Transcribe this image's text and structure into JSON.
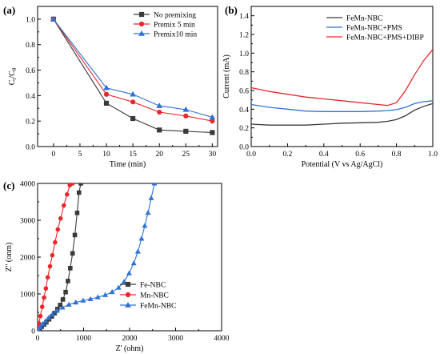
{
  "chart_data": [
    {
      "type": "line",
      "panel": "(a)",
      "xlabel": "Time (min)",
      "ylabel_main": "C",
      "ylabel_sub1": "t",
      "ylabel_mid": "/C",
      "ylabel_sub2": "0",
      "xlim": [
        -3,
        31
      ],
      "ylim": [
        0,
        1.1
      ],
      "xticks": [
        0,
        5,
        10,
        15,
        20,
        25,
        30
      ],
      "yticks": [
        0.0,
        0.2,
        0.4,
        0.6,
        0.8,
        1.0
      ],
      "xtick_labels": [
        "0",
        "5",
        "10",
        "15",
        "20",
        "25",
        "30"
      ],
      "ytick_labels": [
        "0.0",
        "0.2",
        "0.4",
        "0.6",
        "0.8",
        "1.0"
      ],
      "legend_position": "top-right",
      "series": [
        {
          "name": "No premixing",
          "color": "#3a3a3a",
          "marker": "square",
          "x": [
            0,
            10,
            15,
            20,
            25,
            30
          ],
          "y": [
            1.0,
            0.34,
            0.22,
            0.13,
            0.12,
            0.11
          ]
        },
        {
          "name": "Premix 5 min",
          "color": "#e8282b",
          "marker": "circle",
          "x": [
            0,
            10,
            15,
            20,
            25,
            30
          ],
          "y": [
            1.0,
            0.41,
            0.35,
            0.27,
            0.24,
            0.2
          ]
        },
        {
          "name": "Premix10 min",
          "color": "#2f72d6",
          "marker": "triangle",
          "x": [
            0,
            10,
            15,
            20,
            25,
            30
          ],
          "y": [
            1.0,
            0.46,
            0.41,
            0.32,
            0.29,
            0.23
          ]
        }
      ]
    },
    {
      "type": "line",
      "panel": "(b)",
      "xlabel": "Potential (V vs Ag/AgCl)",
      "ylabel": "Current (mA)",
      "xlim": [
        0,
        1
      ],
      "ylim": [
        0,
        1.5
      ],
      "xticks": [
        0,
        0.2,
        0.4,
        0.6,
        0.8,
        1.0
      ],
      "yticks": [
        0.0,
        0.2,
        0.4,
        0.6,
        0.8,
        1.0,
        1.2,
        1.4
      ],
      "xtick_labels": [
        "0.0",
        "0.2",
        "0.4",
        "0.6",
        "0.8",
        "1.0"
      ],
      "ytick_labels": [
        "0.0",
        "0.2",
        "0.4",
        "0.6",
        "0.8",
        "1.0",
        "1.2",
        "1.4"
      ],
      "legend_position": "top-right",
      "series": [
        {
          "name": "FeMn-NBC",
          "color": "#3a3a3a",
          "x": [
            0,
            0.1,
            0.2,
            0.3,
            0.4,
            0.5,
            0.6,
            0.7,
            0.75,
            0.8,
            0.85,
            0.9,
            0.95,
            1.0
          ],
          "y": [
            0.24,
            0.23,
            0.23,
            0.23,
            0.24,
            0.25,
            0.255,
            0.26,
            0.27,
            0.29,
            0.33,
            0.39,
            0.43,
            0.46
          ]
        },
        {
          "name": "FeMn-NBC+PMS",
          "color": "#2f72d6",
          "x": [
            0,
            0.1,
            0.2,
            0.3,
            0.4,
            0.5,
            0.6,
            0.7,
            0.75,
            0.8,
            0.85,
            0.9,
            0.95,
            1.0
          ],
          "y": [
            0.45,
            0.42,
            0.4,
            0.38,
            0.375,
            0.375,
            0.375,
            0.38,
            0.385,
            0.395,
            0.42,
            0.46,
            0.48,
            0.49
          ]
        },
        {
          "name": "FeMn-NBC+PMS+DIBP",
          "color": "#e8282b",
          "x": [
            0,
            0.1,
            0.2,
            0.3,
            0.35,
            0.4,
            0.5,
            0.6,
            0.7,
            0.75,
            0.8,
            0.85,
            0.9,
            0.95,
            1.0
          ],
          "y": [
            0.63,
            0.59,
            0.56,
            0.53,
            0.52,
            0.51,
            0.49,
            0.47,
            0.45,
            0.44,
            0.47,
            0.6,
            0.77,
            0.92,
            1.04
          ]
        }
      ]
    },
    {
      "type": "scatter",
      "panel": "(c)",
      "xlabel": "Z' (ohm)",
      "ylabel": "Z'' (onm)",
      "xlim": [
        0,
        4000
      ],
      "ylim": [
        0,
        4000
      ],
      "xticks": [
        0,
        1000,
        2000,
        3000,
        4000
      ],
      "yticks": [
        0,
        1000,
        2000,
        3000,
        4000
      ],
      "xtick_labels": [
        "0",
        "1000",
        "2000",
        "3000",
        "4000"
      ],
      "ytick_labels": [
        "0",
        "1000",
        "2000",
        "3000",
        "4000"
      ],
      "legend_position": "bottom-center",
      "series": [
        {
          "name": "Fe-NBC",
          "color": "#3a3a3a",
          "marker": "square",
          "x": [
            20,
            50,
            90,
            140,
            190,
            250,
            310,
            370,
            430,
            490,
            550,
            610,
            660,
            710,
            760,
            810,
            860,
            900,
            940
          ],
          "y": [
            20,
            60,
            110,
            170,
            230,
            310,
            390,
            480,
            590,
            700,
            850,
            1050,
            1350,
            1700,
            2100,
            2600,
            3200,
            3750,
            4000
          ]
        },
        {
          "name": "Mn-NBC",
          "color": "#e8282b",
          "marker": "circle",
          "x": [
            10,
            30,
            60,
            100,
            140,
            180,
            220,
            270,
            320,
            380,
            440,
            500,
            570,
            640,
            700,
            760
          ],
          "y": [
            60,
            200,
            400,
            650,
            900,
            1150,
            1450,
            1750,
            2050,
            2400,
            2750,
            3050,
            3400,
            3700,
            3950,
            4000
          ]
        },
        {
          "name": "FeMn-NBC",
          "color": "#2f72d6",
          "marker": "triangle",
          "x": [
            20,
            60,
            110,
            170,
            240,
            320,
            420,
            540,
            680,
            830,
            990,
            1150,
            1310,
            1470,
            1620,
            1760,
            1880,
            1990,
            2090,
            2180,
            2260,
            2330,
            2400,
            2470,
            2540
          ],
          "y": [
            30,
            100,
            180,
            260,
            350,
            440,
            540,
            630,
            710,
            770,
            820,
            860,
            910,
            970,
            1050,
            1170,
            1330,
            1560,
            1830,
            2150,
            2500,
            2850,
            3200,
            3600,
            4000
          ]
        }
      ]
    }
  ]
}
